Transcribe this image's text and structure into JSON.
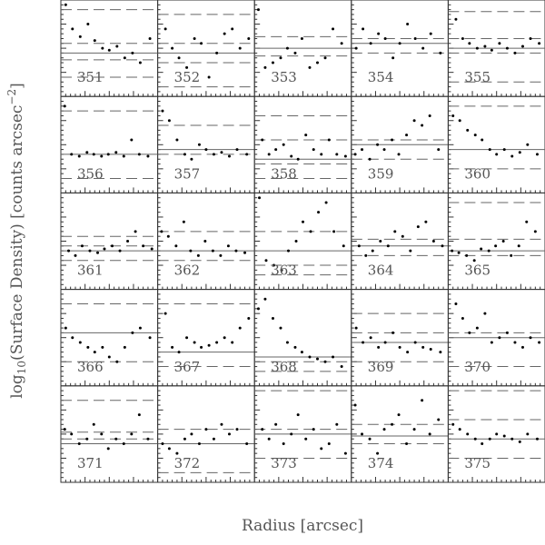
{
  "xlabel": "Radius [arcsec]",
  "ylabel": {
    "prefix": "log",
    "sub": "10",
    "mid": "(Surface Density) [counts arcsec",
    "sup": "−2",
    "suffix": "]"
  },
  "chart_data": [
    {
      "type": "scatter",
      "label": "351",
      "xlim": [
        0,
        100
      ],
      "ylim": [
        0,
        100
      ],
      "solid": 45,
      "dashed": [
        55,
        38,
        90,
        20
      ],
      "x": [
        5,
        12,
        20,
        28,
        35,
        43,
        50,
        58,
        66,
        74,
        82,
        92
      ],
      "y": [
        95,
        70,
        62,
        75,
        58,
        50,
        48,
        52,
        40,
        45,
        35,
        60
      ]
    },
    {
      "type": "scatter",
      "label": "352",
      "xlim": [
        0,
        100
      ],
      "ylim": [
        0,
        100
      ],
      "solid": 45,
      "dashed": [
        85,
        55,
        35,
        10
      ],
      "x": [
        8,
        15,
        22,
        30,
        38,
        45,
        53,
        61,
        69,
        77,
        85,
        94
      ],
      "y": [
        70,
        50,
        40,
        30,
        60,
        55,
        20,
        45,
        65,
        70,
        50,
        60
      ]
    },
    {
      "type": "scatter",
      "label": "353",
      "xlim": [
        0,
        100
      ],
      "ylim": [
        0,
        100
      ],
      "solid": 50,
      "dashed": [
        62,
        42
      ],
      "x": [
        4,
        11,
        19,
        27,
        34,
        42,
        49,
        57,
        65,
        73,
        81,
        90
      ],
      "y": [
        90,
        30,
        35,
        40,
        50,
        45,
        60,
        30,
        35,
        40,
        70,
        55
      ]
    },
    {
      "type": "scatter",
      "label": "354",
      "xlim": [
        0,
        100
      ],
      "ylim": [
        0,
        100
      ],
      "solid": 55,
      "dashed": [
        60,
        45
      ],
      "x": [
        5,
        12,
        20,
        28,
        35,
        43,
        50,
        58,
        66,
        74,
        82,
        92
      ],
      "y": [
        50,
        70,
        55,
        65,
        60,
        40,
        55,
        75,
        60,
        50,
        65,
        45
      ]
    },
    {
      "type": "scatter",
      "label": "355",
      "xlim": [
        0,
        100
      ],
      "ylim": [
        0,
        100
      ],
      "solid": 50,
      "dashed": [
        88,
        60,
        45,
        15
      ],
      "x": [
        8,
        15,
        22,
        30,
        38,
        45,
        53,
        61,
        69,
        77,
        85,
        94
      ],
      "y": [
        80,
        60,
        55,
        50,
        52,
        48,
        55,
        50,
        45,
        52,
        60,
        55
      ]
    },
    {
      "type": "scatter",
      "label": "356",
      "xlim": [
        0,
        100
      ],
      "ylim": [
        0,
        100
      ],
      "solid": 40,
      "dashed": [
        85,
        15
      ],
      "x": [
        4,
        11,
        19,
        27,
        34,
        42,
        49,
        57,
        65,
        73,
        81,
        90
      ],
      "y": [
        90,
        40,
        38,
        42,
        40,
        38,
        40,
        42,
        38,
        55,
        40,
        38
      ]
    },
    {
      "type": "scatter",
      "label": "357",
      "xlim": [
        0,
        100
      ],
      "ylim": [
        0,
        100
      ],
      "solid": 45,
      "dashed": [
        70,
        40
      ],
      "x": [
        5,
        12,
        20,
        28,
        35,
        43,
        50,
        58,
        66,
        74,
        82,
        92
      ],
      "y": [
        85,
        75,
        55,
        40,
        35,
        50,
        45,
        40,
        42,
        38,
        45,
        40
      ]
    },
    {
      "type": "scatter",
      "label": "358",
      "xlim": [
        0,
        100
      ],
      "ylim": [
        0,
        100
      ],
      "solid": 35,
      "dashed": [
        80,
        55,
        30,
        15
      ],
      "x": [
        8,
        15,
        22,
        30,
        38,
        45,
        53,
        61,
        69,
        77,
        85,
        94
      ],
      "y": [
        55,
        40,
        45,
        50,
        38,
        35,
        60,
        45,
        40,
        55,
        40,
        38
      ]
    },
    {
      "type": "scatter",
      "label": "359",
      "xlim": [
        0,
        100
      ],
      "ylim": [
        0,
        100
      ],
      "solid": 50,
      "dashed": [
        55,
        35
      ],
      "x": [
        4,
        11,
        19,
        27,
        34,
        42,
        49,
        57,
        65,
        73,
        81,
        90
      ],
      "y": [
        40,
        45,
        35,
        50,
        45,
        55,
        40,
        60,
        75,
        70,
        80,
        45
      ]
    },
    {
      "type": "scatter",
      "label": "360",
      "xlim": [
        0,
        100
      ],
      "ylim": [
        0,
        100
      ],
      "solid": 45,
      "dashed": [
        90,
        25
      ],
      "x": [
        5,
        12,
        20,
        28,
        35,
        43,
        50,
        58,
        66,
        74,
        82,
        92
      ],
      "y": [
        80,
        75,
        65,
        60,
        55,
        45,
        40,
        45,
        38,
        42,
        50,
        40
      ]
    },
    {
      "type": "scatter",
      "label": "361",
      "xlim": [
        0,
        100
      ],
      "ylim": [
        0,
        100
      ],
      "solid": 40,
      "dashed": [
        55,
        45,
        30
      ],
      "x": [
        8,
        15,
        22,
        30,
        38,
        45,
        53,
        61,
        69,
        77,
        85,
        94
      ],
      "y": [
        40,
        35,
        45,
        40,
        38,
        42,
        45,
        40,
        50,
        60,
        45,
        42
      ]
    },
    {
      "type": "scatter",
      "label": "362",
      "xlim": [
        0,
        100
      ],
      "ylim": [
        0,
        100
      ],
      "solid": 40,
      "dashed": [
        60,
        30
      ],
      "x": [
        4,
        11,
        19,
        27,
        34,
        42,
        49,
        57,
        65,
        73,
        81,
        90
      ],
      "y": [
        60,
        55,
        45,
        70,
        40,
        35,
        50,
        40,
        35,
        45,
        40,
        38
      ]
    },
    {
      "type": "scatter",
      "label": "363",
      "xlim": [
        0,
        100
      ],
      "ylim": [
        0,
        100
      ],
      "solid": 40,
      "dashed": [
        60,
        25,
        15
      ],
      "x": [
        5,
        12,
        20,
        28,
        35,
        43,
        50,
        58,
        66,
        74,
        82,
        92
      ],
      "y": [
        95,
        30,
        25,
        20,
        40,
        50,
        70,
        60,
        80,
        90,
        60,
        45
      ]
    },
    {
      "type": "scatter",
      "label": "364",
      "xlim": [
        0,
        100
      ],
      "ylim": [
        0,
        100
      ],
      "solid": 45,
      "dashed": [
        52,
        35
      ],
      "x": [
        8,
        15,
        22,
        30,
        38,
        45,
        53,
        61,
        69,
        77,
        85,
        94
      ],
      "y": [
        45,
        35,
        40,
        50,
        45,
        60,
        55,
        40,
        65,
        70,
        50,
        45
      ]
    },
    {
      "type": "scatter",
      "label": "365",
      "xlim": [
        0,
        100
      ],
      "ylim": [
        0,
        100
      ],
      "solid": 40,
      "dashed": [
        90,
        52,
        35
      ],
      "x": [
        4,
        11,
        19,
        27,
        34,
        42,
        49,
        57,
        65,
        73,
        81,
        90
      ],
      "y": [
        40,
        38,
        35,
        30,
        42,
        40,
        45,
        50,
        35,
        45,
        70,
        60
      ]
    },
    {
      "type": "scatter",
      "label": "366",
      "xlim": [
        0,
        100
      ],
      "ylim": [
        0,
        100
      ],
      "solid": 55,
      "dashed": [
        85,
        25
      ],
      "x": [
        5,
        12,
        20,
        28,
        35,
        43,
        50,
        58,
        66,
        74,
        82,
        92
      ],
      "y": [
        60,
        50,
        45,
        40,
        35,
        40,
        30,
        25,
        40,
        55,
        60,
        50
      ]
    },
    {
      "type": "scatter",
      "label": "367",
      "xlim": [
        0,
        100
      ],
      "ylim": [
        0,
        100
      ],
      "solid": 35,
      "dashed": [
        85,
        20
      ],
      "x": [
        8,
        15,
        22,
        30,
        38,
        45,
        53,
        61,
        69,
        77,
        85,
        94
      ],
      "y": [
        75,
        40,
        35,
        50,
        45,
        40,
        42,
        45,
        50,
        45,
        60,
        70
      ]
    },
    {
      "type": "scatter",
      "label": "368",
      "xlim": [
        0,
        100
      ],
      "ylim": [
        0,
        100
      ],
      "solid": 30,
      "dashed": [
        25,
        15
      ],
      "x": [
        4,
        11,
        19,
        27,
        34,
        42,
        49,
        57,
        65,
        73,
        81,
        90
      ],
      "y": [
        80,
        90,
        70,
        60,
        45,
        40,
        35,
        30,
        28,
        25,
        30,
        20
      ]
    },
    {
      "type": "scatter",
      "label": "369",
      "xlim": [
        0,
        100
      ],
      "ylim": [
        0,
        100
      ],
      "solid": 45,
      "dashed": [
        75,
        55,
        25
      ],
      "x": [
        5,
        12,
        20,
        28,
        35,
        43,
        50,
        58,
        66,
        74,
        82,
        92
      ],
      "y": [
        60,
        45,
        50,
        40,
        45,
        55,
        40,
        35,
        45,
        40,
        38,
        35
      ]
    },
    {
      "type": "scatter",
      "label": "370",
      "xlim": [
        0,
        100
      ],
      "ylim": [
        0,
        100
      ],
      "solid": 50,
      "dashed": [
        55,
        20
      ],
      "x": [
        8,
        15,
        22,
        30,
        38,
        45,
        53,
        61,
        69,
        77,
        85,
        94
      ],
      "y": [
        85,
        70,
        55,
        60,
        75,
        45,
        50,
        55,
        45,
        40,
        50,
        45
      ]
    },
    {
      "type": "scatter",
      "label": "371",
      "xlim": [
        0,
        100
      ],
      "ylim": [
        0,
        100
      ],
      "solid": 40,
      "dashed": [
        52,
        45,
        85
      ],
      "x": [
        4,
        11,
        19,
        27,
        34,
        42,
        49,
        57,
        65,
        73,
        81,
        90
      ],
      "y": [
        55,
        50,
        40,
        45,
        60,
        50,
        35,
        45,
        40,
        50,
        70,
        45
      ]
    },
    {
      "type": "scatter",
      "label": "372",
      "xlim": [
        0,
        100
      ],
      "ylim": [
        0,
        100
      ],
      "solid": 40,
      "dashed": [
        55,
        10
      ],
      "x": [
        5,
        12,
        20,
        28,
        35,
        43,
        50,
        58,
        66,
        74,
        82,
        92
      ],
      "y": [
        40,
        35,
        30,
        45,
        50,
        40,
        55,
        45,
        60,
        50,
        55,
        40
      ]
    },
    {
      "type": "scatter",
      "label": "373",
      "xlim": [
        0,
        100
      ],
      "ylim": [
        0,
        100
      ],
      "solid": 50,
      "dashed": [
        95,
        55,
        25
      ],
      "x": [
        8,
        15,
        22,
        30,
        38,
        45,
        53,
        61,
        69,
        77,
        85,
        94
      ],
      "y": [
        55,
        45,
        60,
        40,
        50,
        70,
        45,
        55,
        35,
        40,
        60,
        30
      ]
    },
    {
      "type": "scatter",
      "label": "374",
      "xlim": [
        0,
        100
      ],
      "ylim": [
        0,
        100
      ],
      "solid": 48,
      "dashed": [
        60,
        40
      ],
      "x": [
        4,
        11,
        19,
        27,
        34,
        42,
        49,
        57,
        65,
        73,
        81,
        90
      ],
      "y": [
        80,
        50,
        45,
        30,
        55,
        60,
        70,
        40,
        55,
        85,
        50,
        65
      ]
    },
    {
      "type": "scatter",
      "label": "375",
      "xlim": [
        0,
        100
      ],
      "ylim": [
        0,
        100
      ],
      "solid": 45,
      "dashed": [
        95,
        65,
        25
      ],
      "x": [
        5,
        12,
        20,
        28,
        35,
        43,
        50,
        58,
        66,
        74,
        82,
        92
      ],
      "y": [
        60,
        55,
        50,
        45,
        40,
        45,
        50,
        48,
        45,
        42,
        50,
        45
      ]
    }
  ]
}
